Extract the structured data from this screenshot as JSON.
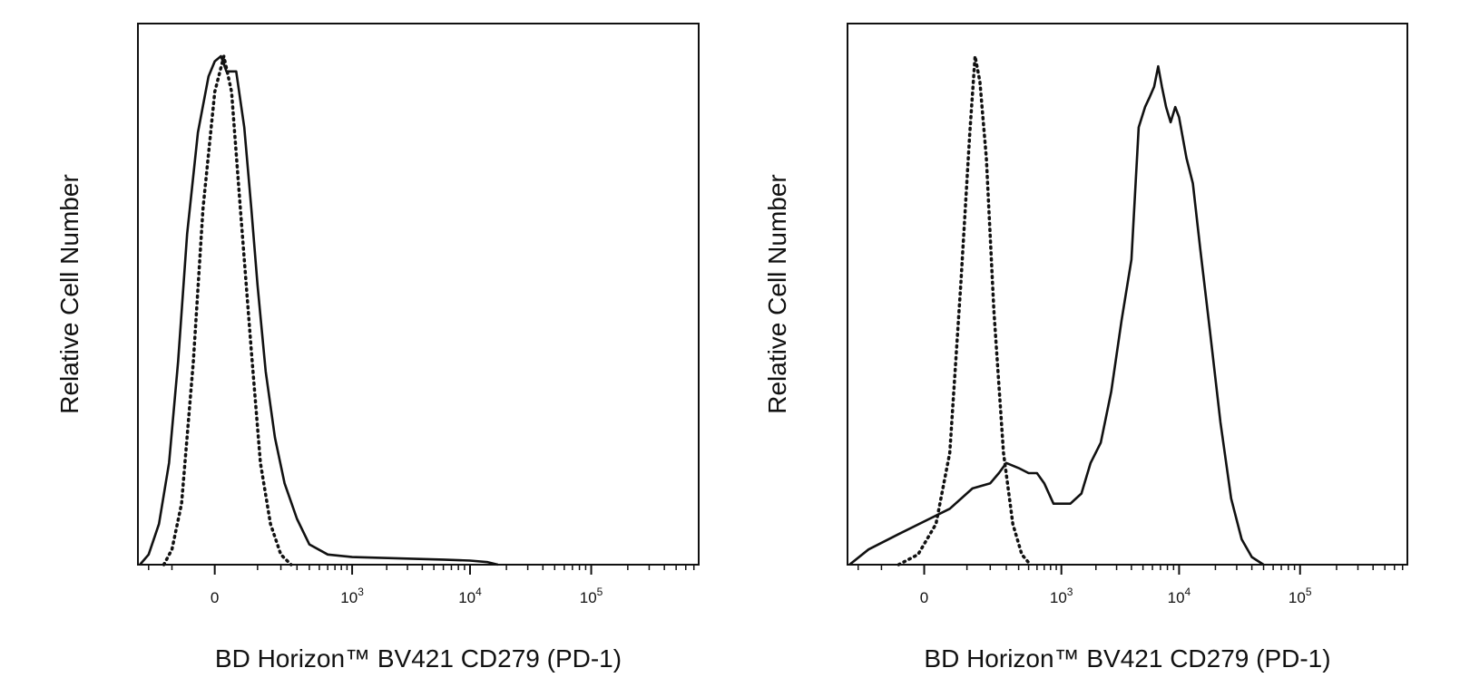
{
  "chart_data": [
    {
      "type": "line",
      "title": "",
      "xlabel": "BD Horizon™ BV421 CD279 (PD-1)",
      "ylabel": "Relative Cell Number",
      "x_scale": "biexponential",
      "x_ticks": [
        {
          "value": 0,
          "base": "0",
          "exp": ""
        },
        {
          "value": 1000,
          "base": "10",
          "exp": "3"
        },
        {
          "value": 10000,
          "base": "10",
          "exp": "4"
        },
        {
          "value": 100000,
          "base": "10",
          "exp": "5"
        }
      ],
      "xlim": [
        -300,
        250000
      ],
      "ylim": [
        0,
        100
      ],
      "grid": false,
      "series": [
        {
          "style": "dotted",
          "points": [
            [
              -130,
              0
            ],
            [
              -100,
              3
            ],
            [
              -70,
              12
            ],
            [
              -40,
              40
            ],
            [
              -20,
              70
            ],
            [
              0,
              93
            ],
            [
              15,
              100
            ],
            [
              30,
              93
            ],
            [
              50,
              70
            ],
            [
              80,
              42
            ],
            [
              110,
              20
            ],
            [
              150,
              8
            ],
            [
              200,
              2
            ],
            [
              260,
              0
            ]
          ]
        },
        {
          "style": "solid",
          "points": [
            [
              -250,
              0
            ],
            [
              -200,
              2
            ],
            [
              -150,
              8
            ],
            [
              -110,
              20
            ],
            [
              -80,
              40
            ],
            [
              -55,
              65
            ],
            [
              -30,
              85
            ],
            [
              -10,
              96
            ],
            [
              0,
              99
            ],
            [
              10,
              100
            ],
            [
              20,
              97
            ],
            [
              40,
              97
            ],
            [
              60,
              86
            ],
            [
              80,
              70
            ],
            [
              100,
              55
            ],
            [
              130,
              38
            ],
            [
              170,
              25
            ],
            [
              220,
              16
            ],
            [
              300,
              9
            ],
            [
              400,
              4
            ],
            [
              600,
              2
            ],
            [
              1000,
              1.5
            ],
            [
              3000,
              1.2
            ],
            [
              6000,
              1
            ],
            [
              10000,
              0.8
            ],
            [
              14000,
              0.5
            ],
            [
              17000,
              0
            ]
          ]
        }
      ]
    },
    {
      "type": "line",
      "title": "",
      "xlabel": "BD Horizon™ BV421 CD279 (PD-1)",
      "ylabel": "Relative Cell Number",
      "x_scale": "biexponential",
      "x_ticks": [
        {
          "value": 0,
          "base": "0",
          "exp": ""
        },
        {
          "value": 1000,
          "base": "10",
          "exp": "3"
        },
        {
          "value": 10000,
          "base": "10",
          "exp": "4"
        },
        {
          "value": 100000,
          "base": "10",
          "exp": "5"
        }
      ],
      "xlim": [
        -300,
        250000
      ],
      "ylim": [
        0,
        100
      ],
      "grid": false,
      "series": [
        {
          "style": "dotted",
          "points": [
            [
              -50,
              0
            ],
            [
              -10,
              2
            ],
            [
              20,
              8
            ],
            [
              50,
              22
            ],
            [
              80,
              55
            ],
            [
              110,
              85
            ],
            [
              130,
              100
            ],
            [
              150,
              95
            ],
            [
              180,
              80
            ],
            [
              220,
              50
            ],
            [
              280,
              22
            ],
            [
              350,
              8
            ],
            [
              430,
              2
            ],
            [
              520,
              0
            ]
          ]
        },
        {
          "style": "solid",
          "points": [
            [
              -250,
              0
            ],
            [
              -150,
              3
            ],
            [
              -50,
              6
            ],
            [
              50,
              11
            ],
            [
              120,
              15
            ],
            [
              200,
              16
            ],
            [
              250,
              18
            ],
            [
              300,
              20
            ],
            [
              400,
              19
            ],
            [
              500,
              18
            ],
            [
              600,
              18
            ],
            [
              700,
              16
            ],
            [
              850,
              12
            ],
            [
              1000,
              12
            ],
            [
              1200,
              12
            ],
            [
              1500,
              14
            ],
            [
              1800,
              20
            ],
            [
              2200,
              24
            ],
            [
              2700,
              34
            ],
            [
              3300,
              48
            ],
            [
              4000,
              60
            ],
            [
              4600,
              86
            ],
            [
              5200,
              90
            ],
            [
              5700,
              92
            ],
            [
              6200,
              94
            ],
            [
              6700,
              98
            ],
            [
              7200,
              94
            ],
            [
              7800,
              90
            ],
            [
              8500,
              87
            ],
            [
              9300,
              90
            ],
            [
              10000,
              88
            ],
            [
              11500,
              80
            ],
            [
              13000,
              75
            ],
            [
              15000,
              62
            ],
            [
              18000,
              46
            ],
            [
              22000,
              28
            ],
            [
              27000,
              13
            ],
            [
              33000,
              5
            ],
            [
              40000,
              1.5
            ],
            [
              50000,
              0
            ]
          ]
        }
      ]
    }
  ]
}
